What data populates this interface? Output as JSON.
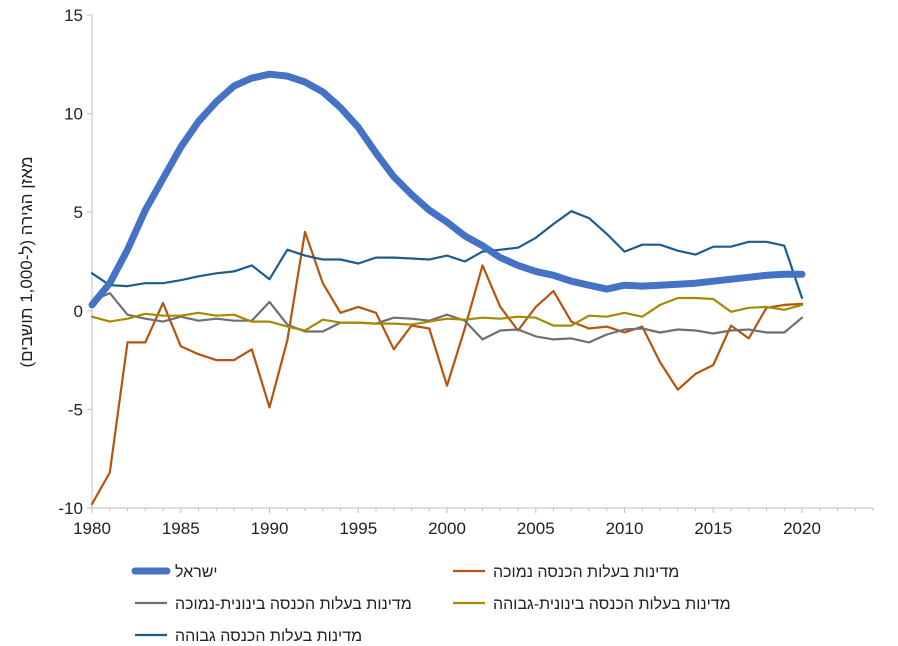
{
  "chart_data": {
    "type": "line",
    "title": "",
    "xlabel": "",
    "ylabel": "מאזן הגירה (ל-1,000 תושבים)",
    "xlim": [
      1980,
      2024
    ],
    "ylim": [
      -10,
      15
    ],
    "x_ticks": [
      "1980",
      "1985",
      "1990",
      "1995",
      "2000",
      "2005",
      "2010",
      "2015",
      "2020"
    ],
    "y_ticks": [
      "15",
      "10",
      "5",
      "0",
      "-5",
      "-10"
    ],
    "grid": false,
    "legend_position": "bottom",
    "series": [
      {
        "name": "ישראל",
        "color": "#4472C4",
        "x": [
          1980,
          1981,
          1982,
          1983,
          1984,
          1985,
          1986,
          1987,
          1988,
          1989,
          1990,
          1991,
          1992,
          1993,
          1994,
          1995,
          1996,
          1997,
          1998,
          1999,
          2000,
          2001,
          2002,
          2003,
          2004,
          2005,
          2006,
          2007,
          2008,
          2009,
          2010,
          2011,
          2012,
          2013,
          2014,
          2015,
          2016,
          2017,
          2018,
          2019,
          2020
        ],
        "values": [
          0.3,
          1.4,
          3.1,
          5.1,
          6.7,
          8.3,
          9.6,
          10.6,
          11.4,
          11.8,
          12.0,
          11.9,
          11.6,
          11.1,
          10.3,
          9.3,
          8.0,
          6.8,
          5.9,
          5.1,
          4.5,
          3.8,
          3.3,
          2.7,
          2.3,
          2.0,
          1.8,
          1.5,
          1.3,
          1.1,
          1.3,
          1.25,
          1.3,
          1.35,
          1.4,
          1.5,
          1.6,
          1.7,
          1.8,
          1.85,
          1.85
        ]
      },
      {
        "name": "מדינות בעלות הכנסה נמוכה",
        "color": "#B5540E",
        "x": [
          1980,
          1981,
          1982,
          1983,
          1984,
          1985,
          1986,
          1987,
          1988,
          1989,
          1990,
          1991,
          1992,
          1993,
          1994,
          1995,
          1996,
          1997,
          1998,
          1999,
          2000,
          2001,
          2002,
          2003,
          2004,
          2005,
          2006,
          2007,
          2008,
          2009,
          2010,
          2011,
          2012,
          2013,
          2014,
          2015,
          2016,
          2017,
          2018,
          2019,
          2020
        ],
        "values": [
          -9.8,
          -8.2,
          -1.6,
          -1.6,
          0.4,
          -1.8,
          -2.2,
          -2.5,
          -2.5,
          -1.95,
          -4.9,
          -1.5,
          4.0,
          1.4,
          -0.1,
          0.2,
          -0.1,
          -1.95,
          -0.75,
          -0.9,
          -3.8,
          -0.9,
          2.3,
          0.2,
          -1.0,
          0.2,
          1.0,
          -0.55,
          -0.9,
          -0.8,
          -1.1,
          -0.8,
          -2.6,
          -4.0,
          -3.2,
          -2.75,
          -0.75,
          -1.4,
          0.15,
          0.3,
          0.35
        ]
      },
      {
        "name": "מדינות בעלות הכנסה בינונית-נמוכה",
        "color": "#707070",
        "x": [
          1980,
          1981,
          1982,
          1983,
          1984,
          1985,
          1986,
          1987,
          1988,
          1989,
          1990,
          1991,
          1992,
          1993,
          1994,
          1995,
          1996,
          1997,
          1998,
          1999,
          2000,
          2001,
          2002,
          2003,
          2004,
          2005,
          2006,
          2007,
          2008,
          2009,
          2010,
          2011,
          2012,
          2013,
          2014,
          2015,
          2016,
          2017,
          2018,
          2019,
          2020
        ],
        "values": [
          0.5,
          0.9,
          -0.2,
          -0.4,
          -0.55,
          -0.3,
          -0.5,
          -0.4,
          -0.5,
          -0.5,
          0.45,
          -0.7,
          -1.05,
          -1.05,
          -0.6,
          -0.6,
          -0.65,
          -0.35,
          -0.4,
          -0.5,
          -0.2,
          -0.5,
          -1.45,
          -1.0,
          -0.95,
          -1.3,
          -1.45,
          -1.4,
          -1.6,
          -1.2,
          -0.95,
          -0.9,
          -1.1,
          -0.95,
          -1.0,
          -1.15,
          -1.0,
          -0.95,
          -1.1,
          -1.1,
          -0.35
        ]
      },
      {
        "name": "מדינות בעלות הכנסה בינונית-גבוהה",
        "color": "#A58A00",
        "x": [
          1980,
          1981,
          1982,
          1983,
          1984,
          1985,
          1986,
          1987,
          1988,
          1989,
          1990,
          1991,
          1992,
          1993,
          1994,
          1995,
          1996,
          1997,
          1998,
          1999,
          2000,
          2001,
          2002,
          2003,
          2004,
          2005,
          2006,
          2007,
          2008,
          2009,
          2010,
          2011,
          2012,
          2013,
          2014,
          2015,
          2016,
          2017,
          2018,
          2019,
          2020
        ],
        "values": [
          -0.3,
          -0.55,
          -0.4,
          -0.15,
          -0.25,
          -0.25,
          -0.1,
          -0.25,
          -0.2,
          -0.55,
          -0.55,
          -0.8,
          -1.0,
          -0.45,
          -0.6,
          -0.6,
          -0.65,
          -0.65,
          -0.7,
          -0.55,
          -0.4,
          -0.45,
          -0.35,
          -0.4,
          -0.3,
          -0.35,
          -0.75,
          -0.75,
          -0.25,
          -0.3,
          -0.1,
          -0.3,
          0.3,
          0.65,
          0.65,
          0.6,
          -0.05,
          0.15,
          0.2,
          0.05,
          0.3
        ]
      },
      {
        "name": "מדינות בעלות הכנסה גבוהה",
        "color": "#1F5C8E",
        "x": [
          1980,
          1981,
          1982,
          1983,
          1984,
          1985,
          1986,
          1987,
          1988,
          1989,
          1990,
          1991,
          1992,
          1993,
          1994,
          1995,
          1996,
          1997,
          1998,
          1999,
          2000,
          2001,
          2002,
          2003,
          2004,
          2005,
          2006,
          2007,
          2008,
          2009,
          2010,
          2011,
          2012,
          2013,
          2014,
          2015,
          2016,
          2017,
          2018,
          2019,
          2020
        ],
        "values": [
          1.9,
          1.3,
          1.25,
          1.4,
          1.4,
          1.55,
          1.75,
          1.9,
          2.0,
          2.3,
          1.6,
          3.1,
          2.8,
          2.6,
          2.6,
          2.4,
          2.7,
          2.7,
          2.65,
          2.6,
          2.8,
          2.5,
          3.0,
          3.1,
          3.2,
          3.7,
          4.4,
          5.05,
          4.7,
          3.9,
          3.0,
          3.35,
          3.35,
          3.05,
          2.85,
          3.25,
          3.25,
          3.5,
          3.5,
          3.3,
          0.65
        ]
      }
    ]
  }
}
